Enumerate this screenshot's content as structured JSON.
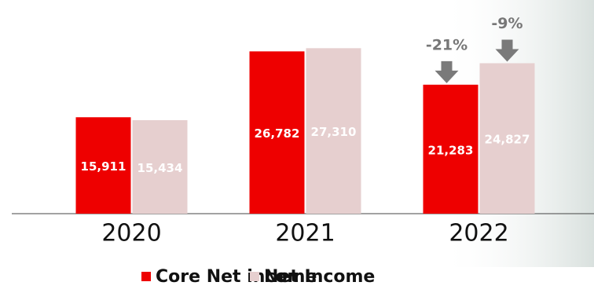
{
  "chart_data": {
    "type": "bar",
    "categories": [
      "2020",
      "2021",
      "2022"
    ],
    "series": [
      {
        "name": "Core Net income",
        "color": "#ee0000",
        "values": [
          15911,
          26782,
          21283
        ],
        "value_labels": [
          "15,911",
          "26,782",
          "21,283"
        ]
      },
      {
        "name": "Net Income",
        "color": "#e6cfcf",
        "values": [
          15434,
          27310,
          24827
        ],
        "value_labels": [
          "15,434",
          "27,310",
          "24,827"
        ]
      }
    ],
    "annotations": [
      "-21%",
      "-9%"
    ],
    "ylim": [
      0,
      35000
    ]
  }
}
